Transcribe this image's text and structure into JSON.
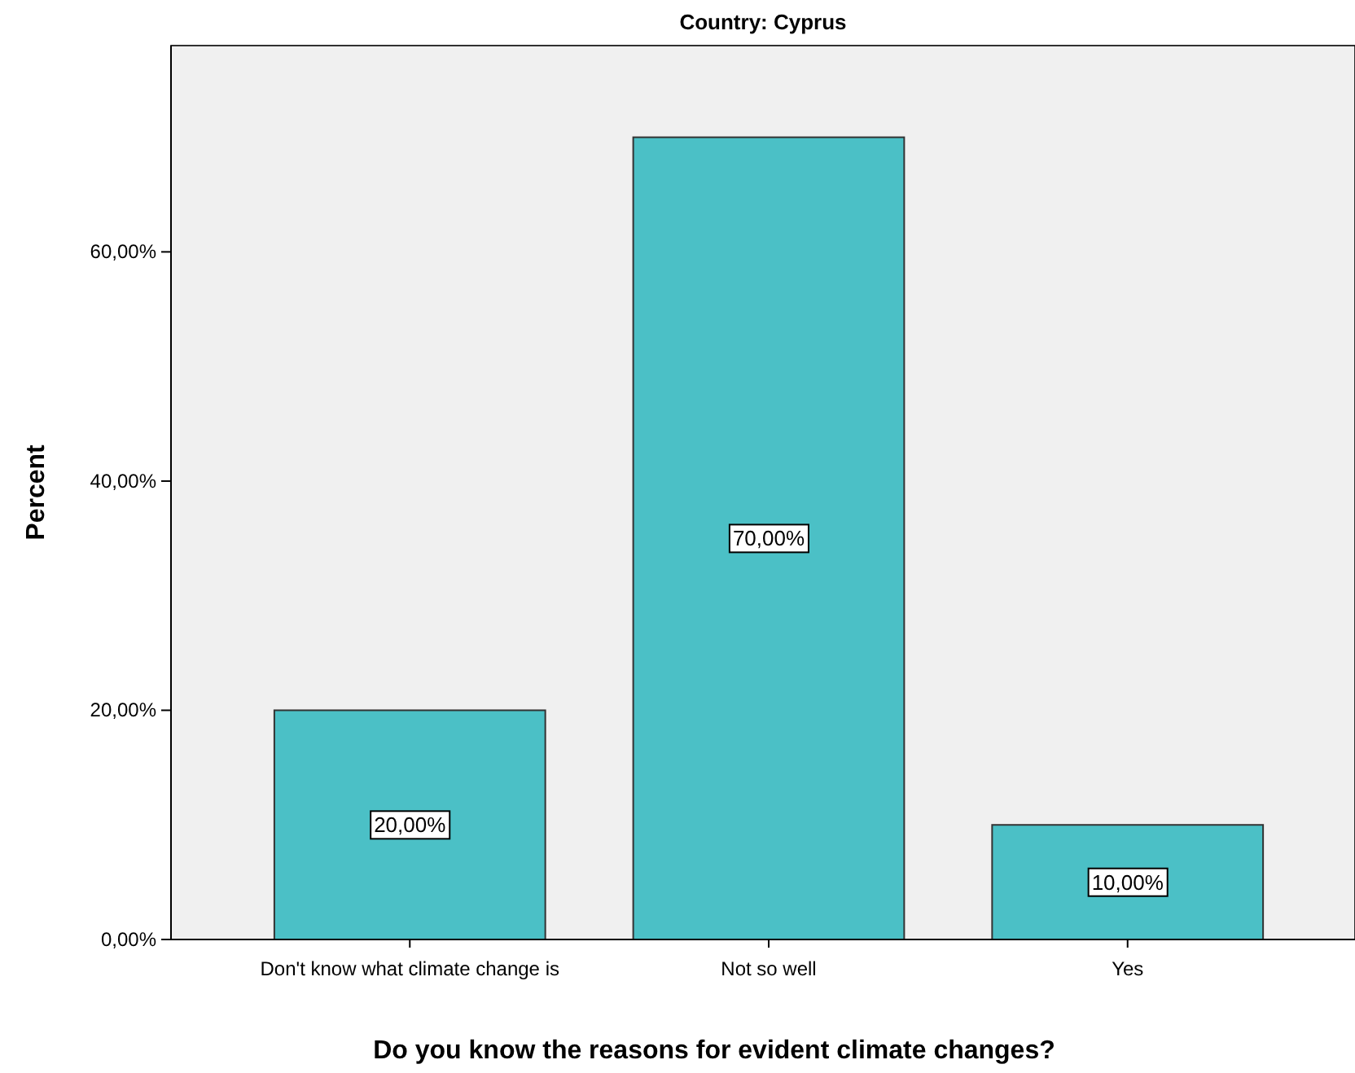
{
  "chart_data": {
    "type": "bar",
    "title": "Country: Cyprus",
    "xlabel": "Do you know the reasons for evident climate changes?",
    "ylabel": "Percent",
    "categories": [
      "Don't know what climate change is",
      "Not so well",
      "Yes"
    ],
    "values": [
      20,
      70,
      10
    ],
    "value_labels": [
      "20,00%",
      "70,00%",
      "10,00%"
    ],
    "color": "#4bc0c6",
    "ylim": [
      0,
      78
    ],
    "yticks": [
      {
        "value": 0,
        "label": "0,00%"
      },
      {
        "value": 20,
        "label": "20,00%"
      },
      {
        "value": 40,
        "label": "40,00%"
      },
      {
        "value": 60,
        "label": "60,00%"
      }
    ],
    "grid": false
  }
}
